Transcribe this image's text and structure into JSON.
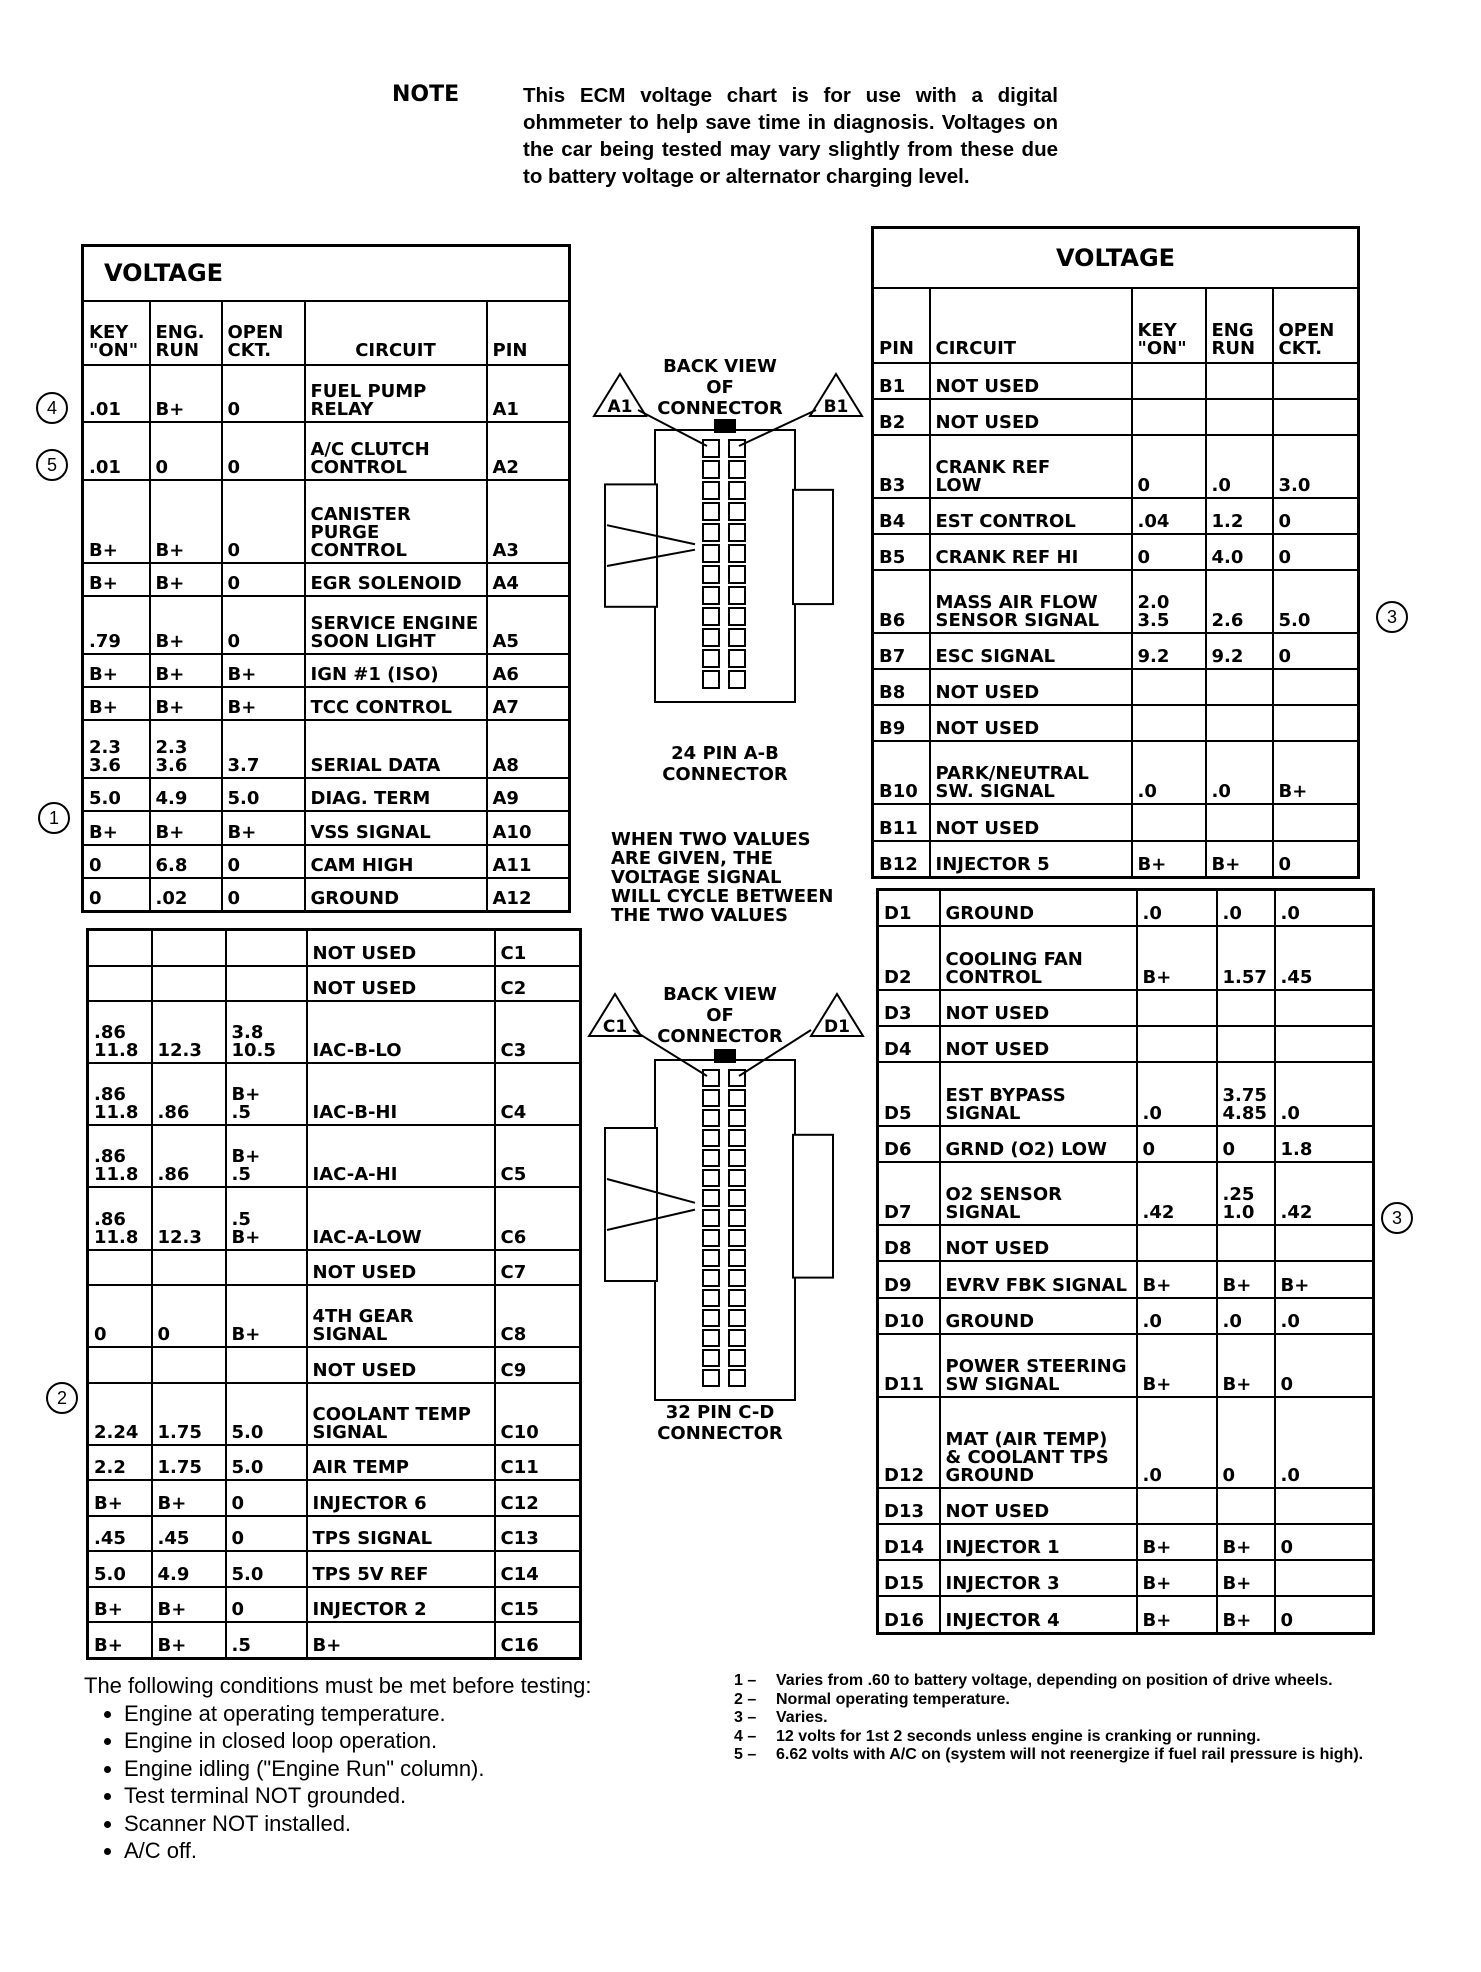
{
  "note": {
    "label": "NOTE",
    "text": "This ECM voltage chart is for use with a digital ohmmeter to help save time in diagnosis. Voltages on the car being tested may vary slightly from these due to battery voltage or alternator charging level."
  },
  "table_a": {
    "title": "VOLTAGE",
    "headers": {
      "key_on": "KEY\n\"ON\"",
      "eng_run": "ENG.\nRUN",
      "open_ckt": "OPEN\nCKT.",
      "circuit": "CIRCUIT",
      "pin": "PIN"
    },
    "rows": [
      {
        "key_on": ".01",
        "eng_run": "B+",
        "open_ckt": "0",
        "circuit": "FUEL PUMP\nRELAY",
        "pin": "A1",
        "marker": "4"
      },
      {
        "key_on": ".01",
        "eng_run": "0",
        "open_ckt": "0",
        "circuit": "A/C CLUTCH\nCONTROL",
        "pin": "A2",
        "marker": "5"
      },
      {
        "key_on": "B+",
        "eng_run": "B+",
        "open_ckt": "0",
        "circuit": "CANISTER PURGE\nCONTROL",
        "pin": "A3"
      },
      {
        "key_on": "B+",
        "eng_run": "B+",
        "open_ckt": "0",
        "circuit": "EGR SOLENOID",
        "pin": "A4"
      },
      {
        "key_on": ".79",
        "eng_run": "B+",
        "open_ckt": "0",
        "circuit": "SERVICE ENGINE\nSOON LIGHT",
        "pin": "A5"
      },
      {
        "key_on": "B+",
        "eng_run": "B+",
        "open_ckt": "B+",
        "circuit": "IGN #1 (ISO)",
        "pin": "A6"
      },
      {
        "key_on": "B+",
        "eng_run": "B+",
        "open_ckt": "B+",
        "circuit": "TCC CONTROL",
        "pin": "A7"
      },
      {
        "key_on": "2.3\n3.6",
        "eng_run": "2.3\n3.6",
        "open_ckt": "3.7",
        "circuit": "SERIAL DATA",
        "pin": "A8"
      },
      {
        "key_on": "5.0",
        "eng_run": "4.9",
        "open_ckt": "5.0",
        "circuit": "DIAG. TERM",
        "pin": "A9"
      },
      {
        "key_on": "B+",
        "eng_run": "B+",
        "open_ckt": "B+",
        "circuit": "VSS SIGNAL",
        "pin": "A10",
        "marker": "1"
      },
      {
        "key_on": "0",
        "eng_run": "6.8",
        "open_ckt": "0",
        "circuit": "CAM HIGH",
        "pin": "A11"
      },
      {
        "key_on": "0",
        "eng_run": ".02",
        "open_ckt": "0",
        "circuit": "GROUND",
        "pin": "A12"
      }
    ]
  },
  "table_c": {
    "rows": [
      {
        "key_on": "",
        "eng_run": "",
        "open_ckt": "",
        "circuit": "NOT USED",
        "pin": "C1"
      },
      {
        "key_on": "",
        "eng_run": "",
        "open_ckt": "",
        "circuit": "NOT USED",
        "pin": "C2"
      },
      {
        "key_on": ".86\n11.8",
        "eng_run": "12.3",
        "open_ckt": "3.8\n10.5",
        "circuit": "IAC-B-LO",
        "pin": "C3"
      },
      {
        "key_on": ".86\n11.8",
        "eng_run": ".86",
        "open_ckt": "B+\n.5",
        "circuit": "IAC-B-HI",
        "pin": "C4"
      },
      {
        "key_on": ".86\n11.8",
        "eng_run": ".86",
        "open_ckt": "B+\n.5",
        "circuit": "IAC-A-HI",
        "pin": "C5"
      },
      {
        "key_on": ".86\n11.8",
        "eng_run": "12.3",
        "open_ckt": ".5\nB+",
        "circuit": "IAC-A-LOW",
        "pin": "C6"
      },
      {
        "key_on": "",
        "eng_run": "",
        "open_ckt": "",
        "circuit": "NOT USED",
        "pin": "C7"
      },
      {
        "key_on": "0",
        "eng_run": "0",
        "open_ckt": "B+",
        "circuit": "4TH GEAR\nSIGNAL",
        "pin": "C8"
      },
      {
        "key_on": "",
        "eng_run": "",
        "open_ckt": "",
        "circuit": "NOT USED",
        "pin": "C9"
      },
      {
        "key_on": "2.24",
        "eng_run": "1.75",
        "open_ckt": "5.0",
        "circuit": "COOLANT TEMP\nSIGNAL",
        "pin": "C10",
        "marker": "2"
      },
      {
        "key_on": "2.2",
        "eng_run": "1.75",
        "open_ckt": "5.0",
        "circuit": "AIR TEMP",
        "pin": "C11"
      },
      {
        "key_on": "B+",
        "eng_run": "B+",
        "open_ckt": "0",
        "circuit": "INJECTOR 6",
        "pin": "C12"
      },
      {
        "key_on": ".45",
        "eng_run": ".45",
        "open_ckt": "0",
        "circuit": "TPS SIGNAL",
        "pin": "C13"
      },
      {
        "key_on": "5.0",
        "eng_run": "4.9",
        "open_ckt": "5.0",
        "circuit": "TPS 5V REF",
        "pin": "C14"
      },
      {
        "key_on": "B+",
        "eng_run": "B+",
        "open_ckt": "0",
        "circuit": "INJECTOR 2",
        "pin": "C15"
      },
      {
        "key_on": "B+",
        "eng_run": "B+",
        "open_ckt": ".5",
        "circuit": "B+",
        "pin": "C16"
      }
    ]
  },
  "table_b": {
    "title": "VOLTAGE",
    "headers": {
      "pin": "PIN",
      "circuit": "CIRCUIT",
      "key_on": "KEY\n\"ON\"",
      "eng_run": "ENG\nRUN",
      "open_ckt": "OPEN\nCKT."
    },
    "rows": [
      {
        "pin": "B1",
        "circuit": "NOT USED",
        "key_on": "",
        "eng_run": "",
        "open_ckt": ""
      },
      {
        "pin": "B2",
        "circuit": "NOT USED",
        "key_on": "",
        "eng_run": "",
        "open_ckt": ""
      },
      {
        "pin": "B3",
        "circuit": "CRANK REF\nLOW",
        "key_on": "0",
        "eng_run": ".0",
        "open_ckt": "3.0"
      },
      {
        "pin": "B4",
        "circuit": "EST CONTROL",
        "key_on": ".04",
        "eng_run": "1.2",
        "open_ckt": "0"
      },
      {
        "pin": "B5",
        "circuit": "CRANK REF HI",
        "key_on": "0",
        "eng_run": "4.0",
        "open_ckt": "0"
      },
      {
        "pin": "B6",
        "circuit": "MASS AIR FLOW\nSENSOR SIGNAL",
        "key_on": "2.0\n3.5",
        "eng_run": "2.6",
        "open_ckt": "5.0",
        "marker": "3"
      },
      {
        "pin": "B7",
        "circuit": "ESC SIGNAL",
        "key_on": "9.2",
        "eng_run": "9.2",
        "open_ckt": "0"
      },
      {
        "pin": "B8",
        "circuit": "NOT USED",
        "key_on": "",
        "eng_run": "",
        "open_ckt": ""
      },
      {
        "pin": "B9",
        "circuit": "NOT USED",
        "key_on": "",
        "eng_run": "",
        "open_ckt": ""
      },
      {
        "pin": "B10",
        "circuit": "PARK/NEUTRAL\nSW. SIGNAL",
        "key_on": ".0",
        "eng_run": ".0",
        "open_ckt": "B+"
      },
      {
        "pin": "B11",
        "circuit": "NOT USED",
        "key_on": "",
        "eng_run": "",
        "open_ckt": ""
      },
      {
        "pin": "B12",
        "circuit": "INJECTOR 5",
        "key_on": "B+",
        "eng_run": "B+",
        "open_ckt": "0"
      }
    ]
  },
  "table_d": {
    "rows": [
      {
        "pin": "D1",
        "circuit": "GROUND",
        "key_on": ".0",
        "eng_run": ".0",
        "open_ckt": ".0"
      },
      {
        "pin": "D2",
        "circuit": "COOLING FAN\nCONTROL",
        "key_on": "B+",
        "eng_run": "1.57",
        "open_ckt": ".45"
      },
      {
        "pin": "D3",
        "circuit": "NOT USED",
        "key_on": "",
        "eng_run": "",
        "open_ckt": ""
      },
      {
        "pin": "D4",
        "circuit": "NOT USED",
        "key_on": "",
        "eng_run": "",
        "open_ckt": ""
      },
      {
        "pin": "D5",
        "circuit": "EST BYPASS\nSIGNAL",
        "key_on": ".0",
        "eng_run": "3.75\n4.85",
        "open_ckt": ".0"
      },
      {
        "pin": "D6",
        "circuit": "GRND (O2) LOW",
        "key_on": "0",
        "eng_run": "0",
        "open_ckt": "1.8"
      },
      {
        "pin": "D7",
        "circuit": "O2 SENSOR\nSIGNAL",
        "key_on": ".42",
        "eng_run": ".25\n1.0",
        "open_ckt": ".42",
        "marker": "3"
      },
      {
        "pin": "D8",
        "circuit": "NOT USED",
        "key_on": "",
        "eng_run": "",
        "open_ckt": ""
      },
      {
        "pin": "D9",
        "circuit": "EVRV FBK SIGNAL",
        "key_on": "B+",
        "eng_run": "B+",
        "open_ckt": "B+"
      },
      {
        "pin": "D10",
        "circuit": "GROUND",
        "key_on": ".0",
        "eng_run": ".0",
        "open_ckt": ".0"
      },
      {
        "pin": "D11",
        "circuit": "POWER STEERING\nSW SIGNAL",
        "key_on": "B+",
        "eng_run": "B+",
        "open_ckt": "0"
      },
      {
        "pin": "D12",
        "circuit": "MAT (AIR TEMP)\n& COOLANT TPS\nGROUND",
        "key_on": ".0",
        "eng_run": "0",
        "open_ckt": ".0"
      },
      {
        "pin": "D13",
        "circuit": "NOT USED",
        "key_on": "",
        "eng_run": "",
        "open_ckt": ""
      },
      {
        "pin": "D14",
        "circuit": "INJECTOR 1",
        "key_on": "B+",
        "eng_run": "B+",
        "open_ckt": "0"
      },
      {
        "pin": "D15",
        "circuit": "INJECTOR 3",
        "key_on": "B+",
        "eng_run": "B+",
        "open_ckt": ""
      },
      {
        "pin": "D16",
        "circuit": "INJECTOR 4",
        "key_on": "B+",
        "eng_run": "B+",
        "open_ckt": "0"
      }
    ]
  },
  "connector_ab": {
    "back_view": "BACK VIEW\nOF\nCONNECTOR",
    "left_tag": "A1",
    "right_tag": "B1",
    "caption": "24 PIN A-B\nCONNECTOR"
  },
  "connector_cd": {
    "back_view": "BACK VIEW\nOF\nCONNECTOR",
    "left_tag": "C1",
    "right_tag": "D1",
    "caption": "32 PIN C-D\nCONNECTOR"
  },
  "two_values_note": "WHEN TWO VALUES\nARE GIVEN, THE\nVOLTAGE SIGNAL\nWILL CYCLE BETWEEN\nTHE TWO VALUES",
  "conditions": {
    "heading": "The following conditions must be met before testing:",
    "items": [
      "Engine at operating temperature.",
      "Engine in closed loop operation.",
      "Engine idling (\"Engine Run\" column).",
      "Test terminal NOT grounded.",
      "Scanner NOT installed.",
      "A/C off."
    ]
  },
  "footnotes": [
    {
      "num": "1 –",
      "text": "Varies from .60 to battery voltage, depending on position of drive wheels."
    },
    {
      "num": "2 –",
      "text": "Normal operating temperature."
    },
    {
      "num": "3 –",
      "text": "Varies."
    },
    {
      "num": "4 –",
      "text": "12 volts for 1st 2 seconds unless engine is cranking or running."
    },
    {
      "num": "5 –",
      "text": "6.62 volts with A/C on (system will not reenergize if fuel rail pressure is high)."
    }
  ]
}
